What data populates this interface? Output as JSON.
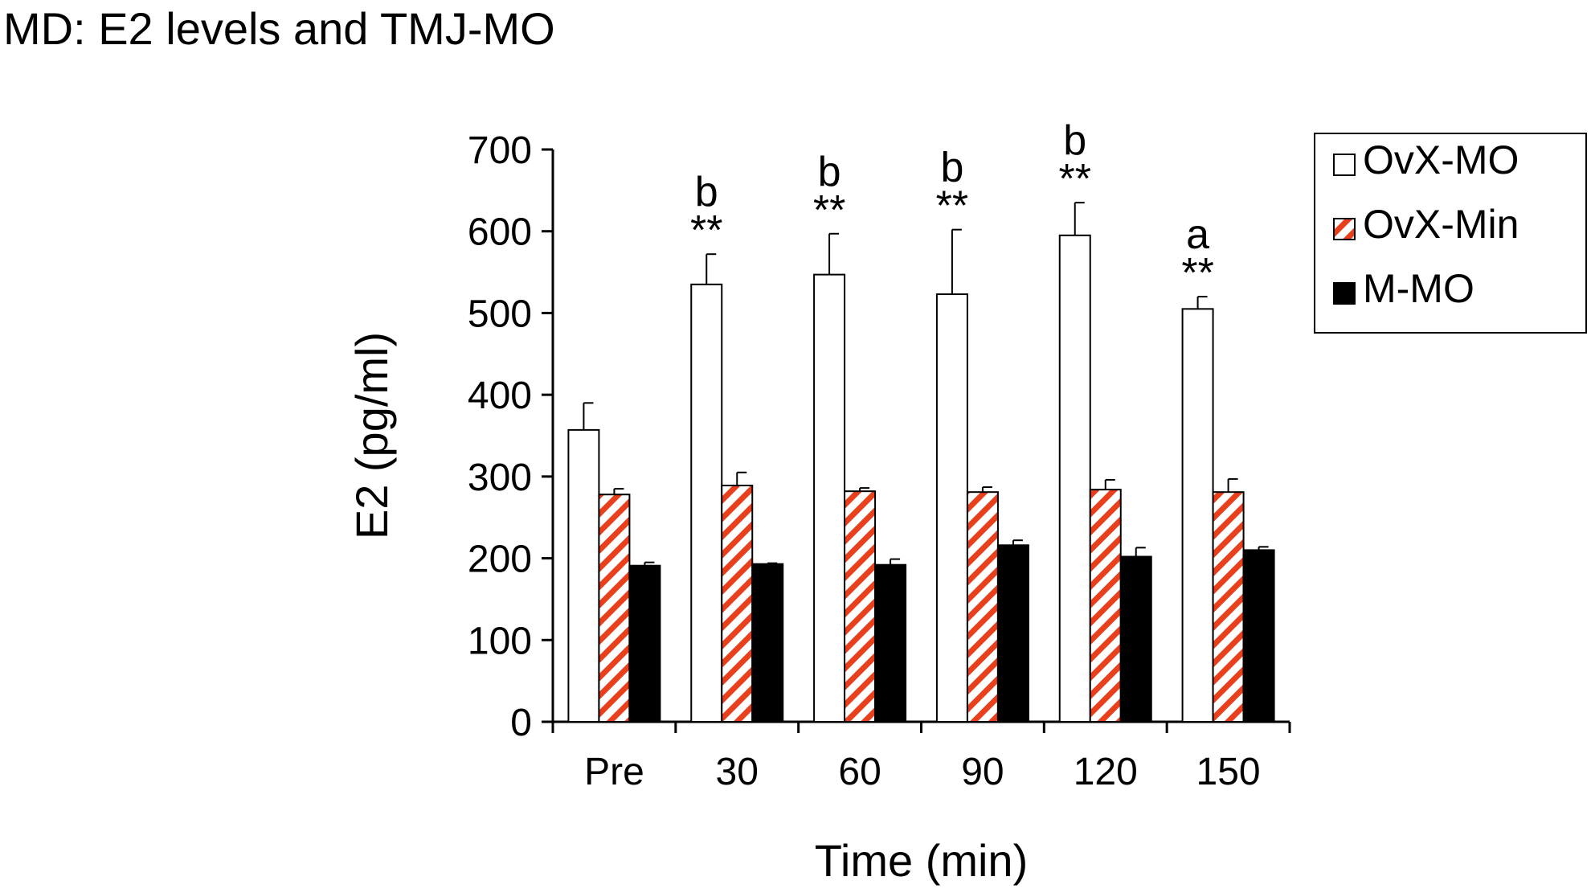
{
  "page_title": "MD: E2 levels and TMJ-MO",
  "chart_data": {
    "type": "bar",
    "title": "MD: E2 levels and TMJ-MO",
    "xlabel": "Time (min)",
    "ylabel": "E2 (pg/ml)",
    "ylim": [
      0,
      700
    ],
    "yticks": [
      0,
      100,
      200,
      300,
      400,
      500,
      600,
      700
    ],
    "categories": [
      "Pre",
      "30",
      "60",
      "90",
      "120",
      "150"
    ],
    "series": [
      {
        "name": "OvX-MO",
        "style": "open",
        "values": [
          357,
          535,
          547,
          523,
          595,
          505
        ],
        "errors": [
          33,
          37,
          50,
          79,
          40,
          15
        ]
      },
      {
        "name": "OvX-Min",
        "style": "hatched",
        "values": [
          278,
          289,
          282,
          281,
          284,
          281
        ],
        "errors": [
          7,
          16,
          4,
          6,
          12,
          16
        ]
      },
      {
        "name": "M-MO",
        "style": "solid",
        "values": [
          191,
          193,
          192,
          216,
          202,
          210
        ],
        "errors": [
          4,
          1,
          7,
          6,
          11,
          4
        ]
      }
    ],
    "annotations": [
      {
        "category": "Pre",
        "stars": "",
        "letter": ""
      },
      {
        "category": "30",
        "stars": "**",
        "letter": "b"
      },
      {
        "category": "60",
        "stars": "**",
        "letter": "b"
      },
      {
        "category": "90",
        "stars": "**",
        "letter": "b"
      },
      {
        "category": "120",
        "stars": "**",
        "letter": "b"
      },
      {
        "category": "150",
        "stars": "**",
        "letter": "a"
      }
    ],
    "legend": {
      "position": "top-right",
      "entries": [
        "OvX-MO",
        "OvX-Min",
        "M-MO"
      ]
    },
    "grid": false,
    "colors": {
      "hatch": "#e8401c",
      "solid": "#000000",
      "open": "#ffffff",
      "axis": "#000000"
    }
  }
}
